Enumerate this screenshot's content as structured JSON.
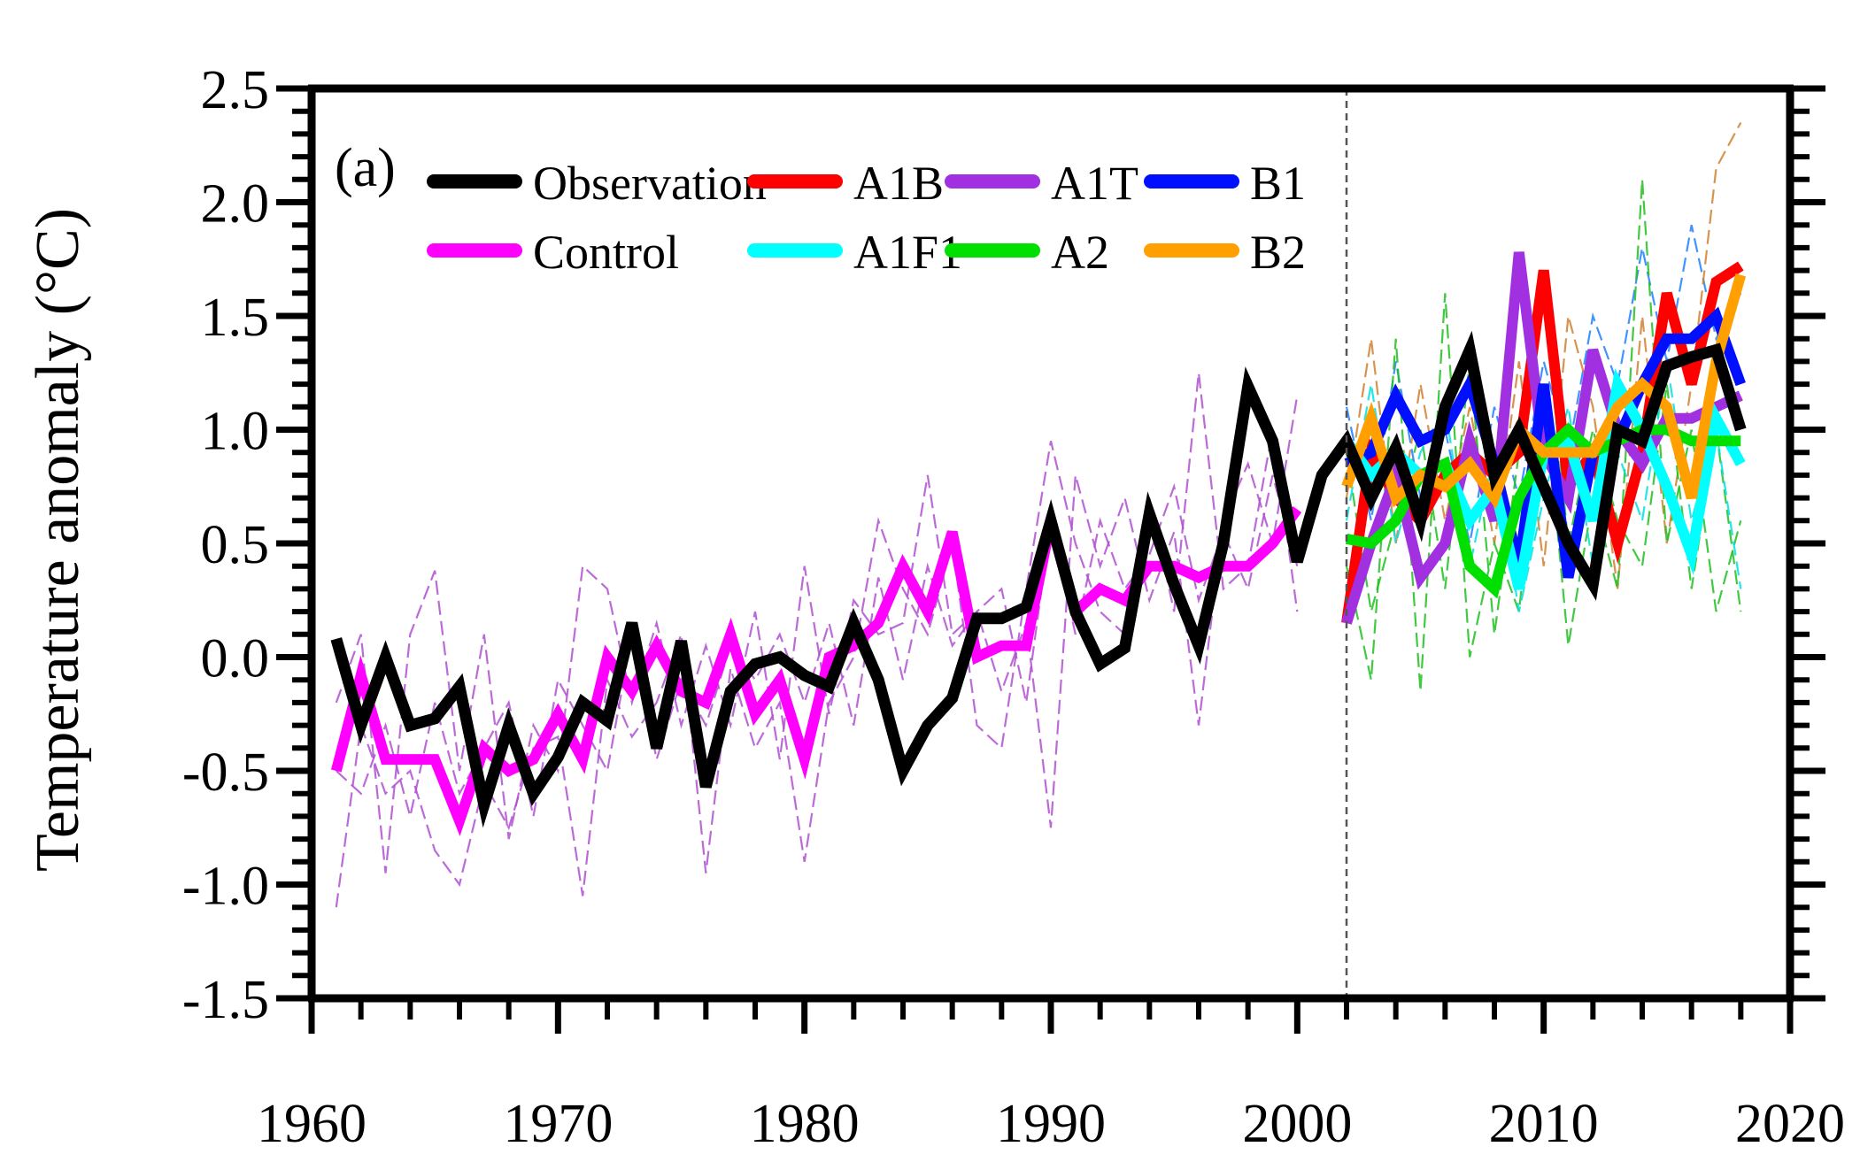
{
  "chart_data": {
    "type": "line",
    "panel_label": "(a)",
    "ylabel": "Temperature anomaly (°C)",
    "xlabel": "",
    "xlim": [
      1960,
      2020
    ],
    "ylim": [
      -1.5,
      2.5
    ],
    "x_ticks": [
      1960,
      1970,
      1980,
      1990,
      2000,
      2010,
      2020
    ],
    "x_tick_labels": [
      "1960",
      "1970",
      "1980",
      "1990",
      "2000",
      "2010",
      "2020"
    ],
    "y_ticks": [
      -1.5,
      -1.0,
      -0.5,
      0.0,
      0.5,
      1.0,
      1.5,
      2.0,
      2.5
    ],
    "y_tick_labels": [
      "-1.5",
      "-1.0",
      "-0.5",
      "0.0",
      "0.5",
      "1.0",
      "1.5",
      "2.0",
      "2.5"
    ],
    "vertical_marker_x": 2002,
    "legend_position": "top-left",
    "legend": [
      {
        "label": "Observation",
        "color": "#000000"
      },
      {
        "label": "A1B",
        "color": "#ff0000"
      },
      {
        "label": "A1T",
        "color": "#a030e0"
      },
      {
        "label": "B1",
        "color": "#0010ff"
      },
      {
        "label": "Control",
        "color": "#ff00ff"
      },
      {
        "label": "A1F1",
        "color": "#00ffff"
      },
      {
        "label": "A2",
        "color": "#00e000"
      },
      {
        "label": "B2",
        "color": "#ffa000"
      }
    ],
    "series": [
      {
        "name": "Control",
        "color": "#ff00ff",
        "x": [
          1961,
          1962,
          1963,
          1964,
          1965,
          1966,
          1967,
          1968,
          1969,
          1970,
          1971,
          1972,
          1973,
          1974,
          1975,
          1976,
          1977,
          1978,
          1979,
          1980,
          1981,
          1982,
          1983,
          1984,
          1985,
          1986,
          1987,
          1988,
          1989,
          1990,
          1991,
          1992,
          1993,
          1994,
          1995,
          1996,
          1997,
          1998,
          1999,
          2000
        ],
        "y": [
          -0.5,
          -0.08,
          -0.45,
          -0.45,
          -0.45,
          -0.72,
          -0.4,
          -0.5,
          -0.45,
          -0.25,
          -0.45,
          0.0,
          -0.15,
          0.05,
          -0.15,
          -0.2,
          0.1,
          -0.25,
          -0.1,
          -0.45,
          0.0,
          0.05,
          0.15,
          0.4,
          0.2,
          0.55,
          0.0,
          0.05,
          0.05,
          0.6,
          0.2,
          0.3,
          0.25,
          0.4,
          0.4,
          0.35,
          0.4,
          0.4,
          0.5,
          0.65
        ]
      },
      {
        "name": "A1B",
        "color": "#ff0000",
        "x": [
          2002,
          2003,
          2004,
          2005,
          2006,
          2007,
          2008,
          2009,
          2010,
          2011,
          2012,
          2013,
          2014,
          2015,
          2016,
          2017,
          2018
        ],
        "y": [
          0.15,
          0.9,
          0.7,
          0.6,
          0.8,
          0.9,
          0.8,
          0.9,
          1.7,
          0.75,
          0.9,
          0.5,
          0.9,
          1.6,
          1.2,
          1.65,
          1.72
        ]
      },
      {
        "name": "A1T",
        "color": "#a030e0",
        "x": [
          2002,
          2003,
          2004,
          2005,
          2006,
          2007,
          2008,
          2009,
          2010,
          2011,
          2012,
          2013,
          2014,
          2015,
          2016,
          2017,
          2018
        ],
        "y": [
          0.15,
          0.5,
          0.8,
          0.35,
          0.5,
          0.95,
          0.6,
          1.78,
          0.9,
          0.7,
          1.35,
          1.0,
          0.85,
          1.05,
          1.05,
          1.1,
          1.15
        ]
      },
      {
        "name": "B1",
        "color": "#0010ff",
        "x": [
          2002,
          2003,
          2004,
          2005,
          2006,
          2007,
          2008,
          2009,
          2010,
          2011,
          2012,
          2013,
          2014,
          2015,
          2016,
          2017,
          2018
        ],
        "y": [
          0.85,
          0.9,
          1.15,
          0.95,
          1.0,
          1.2,
          0.85,
          0.4,
          1.2,
          0.35,
          0.9,
          0.95,
          1.2,
          1.4,
          1.4,
          1.5,
          1.2
        ]
      },
      {
        "name": "A1F1",
        "color": "#00ffff",
        "x": [
          2002,
          2003,
          2004,
          2005,
          2006,
          2007,
          2008,
          2009,
          2010,
          2011,
          2012,
          2013,
          2014,
          2015,
          2016,
          2017,
          2018
        ],
        "y": [
          0.95,
          0.8,
          0.9,
          0.8,
          0.85,
          0.6,
          0.75,
          0.3,
          0.9,
          0.95,
          0.6,
          1.2,
          1.0,
          0.75,
          0.45,
          1.05,
          0.85
        ]
      },
      {
        "name": "A2",
        "color": "#00e000",
        "x": [
          2002,
          2003,
          2004,
          2005,
          2006,
          2007,
          2008,
          2009,
          2010,
          2011,
          2012,
          2013,
          2014,
          2015,
          2016,
          2017,
          2018
        ],
        "y": [
          0.52,
          0.5,
          0.6,
          0.8,
          0.85,
          0.4,
          0.3,
          0.7,
          0.9,
          1.0,
          0.9,
          0.95,
          1.0,
          1.0,
          0.95,
          0.95,
          0.95
        ]
      },
      {
        "name": "B2",
        "color": "#ffa000",
        "x": [
          2002,
          2003,
          2004,
          2005,
          2006,
          2007,
          2008,
          2009,
          2010,
          2011,
          2012,
          2013,
          2014,
          2015,
          2016,
          2017,
          2018
        ],
        "y": [
          0.75,
          1.05,
          0.7,
          0.8,
          0.75,
          0.85,
          0.7,
          1.0,
          0.9,
          0.9,
          0.9,
          1.1,
          1.2,
          1.1,
          0.7,
          1.3,
          1.68
        ]
      },
      {
        "name": "Observation",
        "color": "#000000",
        "x": [
          1961,
          1962,
          1963,
          1964,
          1965,
          1966,
          1967,
          1968,
          1969,
          1970,
          1971,
          1972,
          1973,
          1974,
          1975,
          1976,
          1977,
          1978,
          1979,
          1980,
          1981,
          1982,
          1983,
          1984,
          1985,
          1986,
          1987,
          1988,
          1989,
          1990,
          1991,
          1992,
          1993,
          1994,
          1995,
          1996,
          1997,
          1998,
          1999,
          2000,
          2001,
          2002,
          2003,
          2004,
          2005,
          2006,
          2007,
          2008,
          2009,
          2010,
          2011,
          2012,
          2013,
          2014,
          2015,
          2016,
          2017,
          2018
        ],
        "y": [
          0.08,
          -0.3,
          0.0,
          -0.3,
          -0.27,
          -0.13,
          -0.65,
          -0.3,
          -0.6,
          -0.44,
          -0.2,
          -0.28,
          0.15,
          -0.4,
          0.07,
          -0.57,
          -0.15,
          -0.03,
          0.0,
          -0.08,
          -0.13,
          0.15,
          -0.1,
          -0.5,
          -0.3,
          -0.18,
          0.17,
          0.17,
          0.22,
          0.6,
          0.2,
          -0.03,
          0.04,
          0.63,
          0.32,
          0.05,
          0.5,
          1.19,
          0.95,
          0.42,
          0.8,
          0.95,
          0.7,
          0.92,
          0.6,
          1.1,
          1.35,
          0.8,
          1.0,
          0.75,
          0.5,
          0.32,
          1.0,
          0.95,
          1.28,
          1.32,
          1.35,
          1.0
        ]
      }
    ],
    "ensemble_members": [
      {
        "color": "#b050d0",
        "x": [
          1961,
          1962,
          1963,
          1964,
          1965,
          1966,
          1967,
          1968,
          1969,
          1970,
          1971,
          1972,
          1973,
          1974,
          1975,
          1976,
          1977,
          1978,
          1979,
          1980,
          1981,
          1982,
          1983,
          1984,
          1985,
          1986,
          1987,
          1988,
          1989,
          1990,
          1991,
          1992,
          1993,
          1994,
          1995,
          1996,
          1997,
          1998,
          1999,
          2000
        ],
        "y": [
          -1.1,
          -0.3,
          -0.6,
          -0.5,
          -0.85,
          -1.0,
          -0.55,
          -0.75,
          -0.4,
          -0.35,
          -1.05,
          -0.1,
          -0.35,
          -0.2,
          0.1,
          -0.95,
          -0.05,
          -0.4,
          -0.2,
          -0.9,
          -0.2,
          0.0,
          0.6,
          0.3,
          0.1,
          0.5,
          -0.3,
          -0.4,
          0.3,
          0.95,
          0.5,
          0.2,
          0.1,
          0.7,
          0.2,
          1.25,
          0.3,
          0.4,
          1.0,
          0.2
        ]
      },
      {
        "color": "#b050d0",
        "x": [
          1961,
          1962,
          1963,
          1964,
          1965,
          1966,
          1967,
          1968,
          1969,
          1970,
          1971,
          1972,
          1973,
          1974,
          1975,
          1976,
          1977,
          1978,
          1979,
          1980,
          1981,
          1982,
          1983,
          1984,
          1985,
          1986,
          1987,
          1988,
          1989,
          1990,
          1991,
          1992,
          1993,
          1994,
          1995,
          1996,
          1997,
          1998,
          1999,
          2000
        ],
        "y": [
          -0.2,
          0.1,
          -0.95,
          0.1,
          0.38,
          -0.5,
          0.1,
          -0.8,
          -0.3,
          -0.5,
          0.4,
          0.3,
          -0.2,
          0.15,
          -0.3,
          0.05,
          -0.3,
          0.2,
          -0.45,
          0.4,
          -0.25,
          0.25,
          0.1,
          0.15,
          0.8,
          0.1,
          0.2,
          -0.15,
          0.15,
          -0.75,
          0.8,
          0.4,
          0.7,
          0.25,
          0.55,
          -0.3,
          0.6,
          0.85,
          0.5,
          1.15
        ]
      },
      {
        "color": "#b050d0",
        "x": [
          1961,
          1962,
          1963,
          1964,
          1965,
          1966,
          1967,
          1968,
          1969,
          1970,
          1971,
          1972,
          1973,
          1974,
          1975,
          1976,
          1977,
          1978,
          1979,
          1980,
          1981,
          1982,
          1983,
          1984,
          1985,
          1986,
          1987,
          1988,
          1989,
          1990,
          1991,
          1992,
          1993,
          1994,
          1995,
          1996,
          1997,
          1998,
          1999,
          2000
        ],
        "y": [
          -0.5,
          -0.6,
          -0.3,
          -0.7,
          -0.2,
          -0.6,
          -0.4,
          -0.2,
          -0.7,
          -0.1,
          -0.3,
          -0.5,
          0.1,
          -0.45,
          -0.1,
          -0.3,
          0.05,
          -0.1,
          0.1,
          -0.2,
          0.15,
          -0.3,
          0.35,
          -0.1,
          0.4,
          0.05,
          0.2,
          0.3,
          -0.2,
          0.6,
          0.1,
          0.6,
          0.3,
          0.45,
          0.75,
          0.25,
          0.55,
          0.3,
          0.8,
          0.4
        ]
      }
    ],
    "projection_members": [
      {
        "color": "#2080ff",
        "x": [
          2002,
          2003,
          2004,
          2005,
          2006,
          2007,
          2008,
          2009,
          2010,
          2011,
          2012,
          2013,
          2014,
          2015,
          2016,
          2017,
          2018
        ],
        "y": [
          1.1,
          0.6,
          1.3,
          0.7,
          1.0,
          0.5,
          1.1,
          0.7,
          1.3,
          0.9,
          1.5,
          1.2,
          1.8,
          1.3,
          1.9,
          1.4,
          1.6
        ]
      },
      {
        "color": "#d08030",
        "x": [
          2002,
          2003,
          2004,
          2005,
          2006,
          2007,
          2008,
          2009,
          2010,
          2011,
          2012,
          2013,
          2014,
          2015,
          2016,
          2017,
          2018
        ],
        "y": [
          0.7,
          1.4,
          0.5,
          1.2,
          0.6,
          1.1,
          0.5,
          1.3,
          0.4,
          1.5,
          1.1,
          0.3,
          1.5,
          0.5,
          1.2,
          2.15,
          2.35
        ]
      },
      {
        "color": "#20c020",
        "x": [
          2002,
          2003,
          2004,
          2005,
          2006,
          2007,
          2008,
          2009,
          2010,
          2011,
          2012,
          2013,
          2014,
          2015,
          2016,
          2017,
          2018
        ],
        "y": [
          0.4,
          -0.1,
          1.4,
          -0.15,
          1.6,
          0.0,
          0.5,
          0.2,
          1.2,
          0.05,
          0.7,
          0.3,
          2.1,
          0.5,
          1.0,
          0.2,
          0.6
        ]
      },
      {
        "color": "#20c020",
        "x": [
          2002,
          2003,
          2004,
          2005,
          2006,
          2007,
          2008,
          2009,
          2010,
          2011,
          2012,
          2013,
          2014,
          2015,
          2016,
          2017,
          2018
        ],
        "y": [
          0.9,
          0.2,
          0.6,
          1.0,
          0.3,
          1.3,
          0.1,
          0.9,
          1.6,
          0.5,
          1.0,
          0.6,
          0.4,
          1.2,
          0.3,
          1.0,
          0.2
        ]
      },
      {
        "color": "#00e0e0",
        "x": [
          2002,
          2003,
          2004,
          2005,
          2006,
          2007,
          2008,
          2009,
          2010,
          2011,
          2012,
          2013,
          2014,
          2015,
          2016,
          2017,
          2018
        ],
        "y": [
          0.6,
          1.2,
          0.5,
          0.9,
          1.1,
          0.4,
          0.9,
          0.2,
          0.7,
          1.1,
          0.4,
          0.9,
          0.6,
          1.3,
          0.6,
          1.0,
          0.3
        ]
      }
    ]
  }
}
